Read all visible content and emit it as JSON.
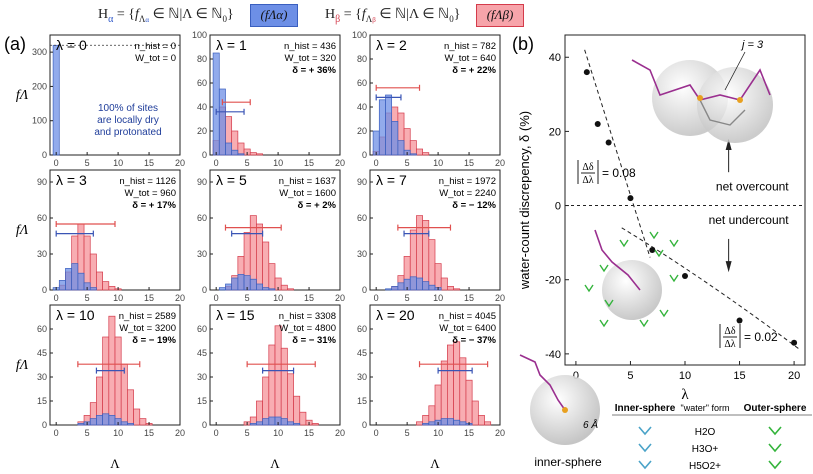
{
  "header": {
    "alpha_def": "Hα = {fΛα ∈ ℕ|Λ ∈ ℕ0}",
    "alpha_box": "(fΛα)",
    "beta_def": "Hβ = {fΛβ ∈ ℕ|Λ ∈ ℕ0}",
    "beta_box": "(fΛβ)"
  },
  "labels": {
    "panel_a": "(a)",
    "panel_b": "(b)",
    "y_label_a": "fΛ",
    "x_label_a": "Λ"
  },
  "colors": {
    "alpha_fill": "#6d8fe6",
    "alpha_stroke": "#3a5fbf",
    "beta_fill": "#f7a4aa",
    "beta_stroke": "#d43b4b",
    "red_bar": "#e0504f",
    "blue_bar": "#3a55b5",
    "green": "#34b43c",
    "cyan": "#4aa3c8"
  },
  "chart_data": [
    {
      "type": "bar",
      "panel": "λ = 0",
      "lambda": 0,
      "n_hist": "",
      "w_tot": "W_tot = 0",
      "delta": "",
      "nhist_line": "n_hist = 0",
      "ylim": [
        0,
        350
      ],
      "yticks": [
        0,
        100,
        200,
        300
      ],
      "xlim": [
        -1,
        20
      ],
      "xticks": [
        0,
        5,
        10,
        15,
        20
      ],
      "alpha": [
        320
      ],
      "beta": [],
      "threshold_line": 320,
      "note": [
        "100% of sites",
        "are locally dry",
        "and protonated"
      ]
    },
    {
      "type": "bar",
      "panel": "λ = 1",
      "lambda": 1,
      "nhist_line": "n_hist = 436",
      "w_tot": "W_tot = 320",
      "delta": "δ = + 36%",
      "ylim": [
        0,
        100
      ],
      "yticks": [
        0,
        20,
        40,
        60,
        80,
        100
      ],
      "xlim": [
        -1,
        20
      ],
      "xticks": [
        0,
        5,
        10,
        15,
        20
      ],
      "alpha": [
        85,
        55,
        10,
        4,
        1,
        0
      ],
      "beta": [
        12,
        40,
        32,
        20,
        10,
        5,
        2,
        1
      ],
      "red_bar": [
        1.0,
        5.5
      ],
      "blue_bar": [
        0,
        4.5
      ],
      "bar_y": [
        44,
        36
      ]
    },
    {
      "type": "bar",
      "panel": "λ = 2",
      "lambda": 2,
      "nhist_line": "n_hist = 782",
      "w_tot": "W_tot = 640",
      "delta": "δ = + 22%",
      "ylim": [
        0,
        100
      ],
      "yticks": [
        0,
        20,
        40,
        60,
        80,
        100
      ],
      "xlim": [
        -1,
        20
      ],
      "xticks": [
        0,
        5,
        10,
        15,
        20
      ],
      "alpha": [
        20,
        46,
        50,
        28,
        12,
        4,
        1
      ],
      "beta": [
        3,
        15,
        35,
        40,
        35,
        22,
        12,
        5,
        2
      ],
      "red_bar": [
        0,
        7.0
      ],
      "blue_bar": [
        0,
        4.0
      ],
      "bar_y": [
        56,
        48
      ]
    },
    {
      "type": "bar",
      "panel": "λ = 3",
      "lambda": 3,
      "nhist_line": "n_hist = 1126",
      "w_tot": "W_tot = 960",
      "delta": "δ = + 17%",
      "ylim": [
        0,
        100
      ],
      "yticks": [
        0,
        30,
        60,
        90
      ],
      "xlim": [
        -1,
        20
      ],
      "xticks": [
        0,
        5,
        10,
        15,
        20
      ],
      "alpha": [
        2,
        8,
        18,
        22,
        14,
        6,
        2
      ],
      "beta": [
        0,
        4,
        15,
        45,
        55,
        45,
        30,
        15,
        7,
        3,
        1
      ],
      "red_bar": [
        0,
        9.5
      ],
      "blue_bar": [
        0,
        6.0
      ],
      "bar_y": [
        55,
        47
      ]
    },
    {
      "type": "bar",
      "panel": "λ = 5",
      "lambda": 5,
      "nhist_line": "n_hist = 1637",
      "w_tot": "W_tot = 1600",
      "delta": "δ = + 2%",
      "ylim": [
        0,
        100
      ],
      "yticks": [
        0,
        30,
        60,
        90
      ],
      "xlim": [
        -1,
        20
      ],
      "xticks": [
        0,
        5,
        10,
        15,
        20
      ],
      "alpha": [
        0,
        2,
        5,
        10,
        13,
        12,
        9,
        5,
        2,
        1
      ],
      "beta": [
        0,
        0,
        3,
        12,
        28,
        48,
        62,
        55,
        40,
        22,
        10,
        4,
        1
      ],
      "red_bar": [
        1.5,
        10.5
      ],
      "blue_bar": [
        2.5,
        7.5
      ],
      "bar_y": [
        52,
        47
      ]
    },
    {
      "type": "bar",
      "panel": "λ = 7",
      "lambda": 7,
      "nhist_line": "n_hist = 1972",
      "w_tot": "W_tot = 2240",
      "delta": "δ = − 12%",
      "ylim": [
        0,
        100
      ],
      "yticks": [
        0,
        30,
        60,
        90
      ],
      "xlim": [
        -1,
        20
      ],
      "xticks": [
        0,
        5,
        10,
        15,
        20
      ],
      "alpha": [
        0,
        0,
        1,
        3,
        6,
        9,
        11,
        10,
        7,
        4,
        2
      ],
      "beta": [
        0,
        0,
        0,
        3,
        12,
        28,
        50,
        62,
        58,
        42,
        22,
        10,
        3,
        1
      ],
      "red_bar": [
        3.5,
        12.0
      ],
      "blue_bar": [
        4.5,
        8.5
      ],
      "bar_y": [
        52,
        47
      ]
    },
    {
      "type": "bar",
      "panel": "λ = 10",
      "lambda": 10,
      "nhist_line": "n_hist = 2589",
      "w_tot": "W_tot = 3200",
      "delta": "δ = − 19%",
      "ylim": [
        0,
        75
      ],
      "yticks": [
        0,
        15,
        30,
        45,
        60
      ],
      "xlim": [
        -1,
        20
      ],
      "xticks": [
        0,
        5,
        10,
        15,
        20
      ],
      "alpha": [
        0,
        0,
        0,
        0,
        1,
        2,
        4,
        6,
        7,
        6,
        4,
        2,
        1
      ],
      "beta": [
        0,
        0,
        0,
        0,
        2,
        6,
        14,
        30,
        55,
        68,
        55,
        38,
        22,
        10,
        4,
        1
      ],
      "red_bar": [
        3.5,
        13.5
      ],
      "blue_bar": [
        6.5,
        11.0
      ],
      "bar_y": [
        38,
        34
      ]
    },
    {
      "type": "bar",
      "panel": "λ = 15",
      "lambda": 15,
      "nhist_line": "n_hist = 3308",
      "w_tot": "W_tot = 4800",
      "delta": "δ = − 31%",
      "ylim": [
        0,
        75
      ],
      "yticks": [
        0,
        15,
        30,
        45,
        60
      ],
      "xlim": [
        -1,
        20
      ],
      "xticks": [
        0,
        5,
        10,
        15,
        20
      ],
      "alpha": [
        0,
        0,
        0,
        0,
        0,
        0,
        1,
        2,
        4,
        5,
        5,
        4,
        2,
        1
      ],
      "beta": [
        0,
        0,
        0,
        0,
        0,
        2,
        5,
        15,
        30,
        50,
        62,
        48,
        32,
        18,
        8,
        3,
        1
      ],
      "red_bar": [
        5.0,
        16.0
      ],
      "blue_bar": [
        7.5,
        12.5
      ],
      "bar_y": [
        38,
        34
      ]
    },
    {
      "type": "bar",
      "panel": "λ = 20",
      "lambda": 20,
      "nhist_line": "n_hist = 4045",
      "w_tot": "W_tot = 6400",
      "delta": "δ = − 37%",
      "ylim": [
        0,
        75
      ],
      "yticks": [
        0,
        15,
        30,
        45,
        60
      ],
      "xlim": [
        -1,
        20
      ],
      "xticks": [
        0,
        5,
        10,
        15,
        20
      ],
      "alpha": [
        0,
        0,
        0,
        0,
        0,
        0,
        0,
        0,
        1,
        2,
        3,
        4,
        4,
        3,
        2,
        1
      ],
      "beta": [
        0,
        0,
        0,
        0,
        0,
        0,
        0,
        2,
        6,
        12,
        25,
        40,
        50,
        52,
        42,
        28,
        15,
        6,
        2
      ],
      "red_bar": [
        7.0,
        18.0
      ],
      "blue_bar": [
        10.0,
        15.5
      ],
      "bar_y": [
        38,
        34
      ]
    },
    {
      "type": "scatter",
      "panel": "b",
      "x": [
        1,
        2,
        3,
        5,
        7,
        10,
        15,
        20
      ],
      "y": [
        36,
        22,
        17,
        2,
        -12,
        -19,
        -31,
        -37
      ],
      "xlim": [
        -1,
        21
      ],
      "ylim": [
        -43,
        46
      ],
      "xticks": [
        0,
        5,
        10,
        15,
        20
      ],
      "yticks": [
        -40,
        -20,
        0,
        20,
        40
      ],
      "xlabel": "λ",
      "ylabel": "water-count discrepency, δ (%)",
      "slope_upper": "= 0.08",
      "slope_lower": "= 0.02",
      "frac": "ΔδΔλ",
      "net_over": "net overcount",
      "net_under": "net undercount",
      "j3": "j = 3"
    }
  ],
  "legend_table": {
    "inner": "Inner-sphere",
    "water_form": "\"water\" form",
    "outer": "Outer-sphere",
    "rows": [
      "H2O",
      "H3O+",
      "H5O2+"
    ]
  },
  "inner_sphere_label": "inner-sphere",
  "radius_label": "6 Å"
}
